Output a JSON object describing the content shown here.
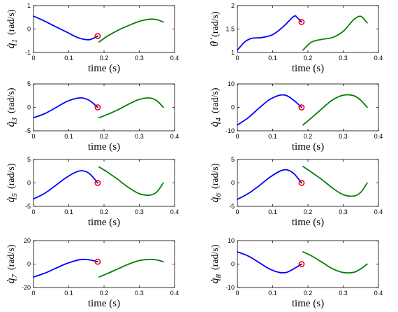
{
  "chart_data": [
    {
      "type": "line",
      "ylabel": {
        "symbol": "q̇",
        "subscript": "1",
        "unit": "(rad/s)"
      },
      "xlabel": "time  (s)",
      "xlim": [
        0,
        0.4
      ],
      "ylim": [
        -1,
        1
      ],
      "xticks": [
        "0",
        "0.1",
        "0.2",
        "0.3",
        "0.4"
      ],
      "yticks": [
        "-1",
        "0",
        "1"
      ],
      "series": [
        {
          "color": "#0000ff",
          "x": [
            0,
            0.03,
            0.06,
            0.09,
            0.12,
            0.14,
            0.16,
            0.182
          ],
          "y": [
            0.55,
            0.35,
            0.12,
            -0.1,
            -0.33,
            -0.43,
            -0.45,
            -0.3
          ]
        },
        {
          "color": "#008000",
          "x": [
            0.186,
            0.21,
            0.24,
            0.27,
            0.3,
            0.33,
            0.35,
            0.368
          ],
          "y": [
            -0.55,
            -0.3,
            -0.05,
            0.15,
            0.33,
            0.42,
            0.4,
            0.3
          ]
        }
      ],
      "marker": {
        "x": 0.182,
        "y": -0.3,
        "color": "#ff0000"
      }
    },
    {
      "type": "line",
      "ylabel": {
        "symbol": "θ̇",
        "subscript": "",
        "unit": "(rad/s)"
      },
      "xlabel": "time  (s)",
      "xlim": [
        0,
        0.4
      ],
      "ylim": [
        1,
        2
      ],
      "xticks": [
        "0",
        "0.1",
        "0.2",
        "0.3",
        "0.4"
      ],
      "yticks": [
        "1",
        "1.5",
        "2"
      ],
      "series": [
        {
          "color": "#0000ff",
          "x": [
            0,
            0.02,
            0.04,
            0.07,
            0.1,
            0.13,
            0.16,
            0.17,
            0.182
          ],
          "y": [
            1.05,
            1.22,
            1.3,
            1.32,
            1.38,
            1.55,
            1.77,
            1.74,
            1.65
          ]
        },
        {
          "color": "#008000",
          "x": [
            0.186,
            0.21,
            0.24,
            0.27,
            0.3,
            0.33,
            0.35,
            0.368
          ],
          "y": [
            1.05,
            1.22,
            1.28,
            1.32,
            1.45,
            1.7,
            1.77,
            1.63
          ]
        }
      ],
      "marker": {
        "x": 0.182,
        "y": 1.65,
        "color": "#ff0000"
      }
    },
    {
      "type": "line",
      "ylabel": {
        "symbol": "q̇",
        "subscript": "3",
        "unit": "(rad/s)"
      },
      "xlabel": "time  (s)",
      "xlim": [
        0,
        0.4
      ],
      "ylim": [
        -5,
        5
      ],
      "xticks": [
        "0",
        "0.1",
        "0.2",
        "0.3",
        "0.4"
      ],
      "yticks": [
        "-5",
        "0",
        "5"
      ],
      "series": [
        {
          "color": "#0000ff",
          "x": [
            0,
            0.03,
            0.06,
            0.09,
            0.12,
            0.14,
            0.16,
            0.182
          ],
          "y": [
            -2.2,
            -1.4,
            -0.2,
            1.1,
            1.9,
            2.0,
            1.4,
            0.0
          ]
        },
        {
          "color": "#008000",
          "x": [
            0.186,
            0.21,
            0.24,
            0.27,
            0.3,
            0.33,
            0.35,
            0.368
          ],
          "y": [
            -2.2,
            -1.5,
            -0.5,
            0.7,
            1.7,
            2.0,
            1.4,
            0.0
          ]
        }
      ],
      "marker": {
        "x": 0.182,
        "y": 0.0,
        "color": "#ff0000"
      }
    },
    {
      "type": "line",
      "ylabel": {
        "symbol": "q̇",
        "subscript": "4",
        "unit": "(rad/s)"
      },
      "xlabel": "time  (s)",
      "xlim": [
        0,
        0.4
      ],
      "ylim": [
        -10,
        10
      ],
      "xticks": [
        "0",
        "0.1",
        "0.2",
        "0.3",
        "0.4"
      ],
      "yticks": [
        "-10",
        "0",
        "10"
      ],
      "series": [
        {
          "color": "#0000ff",
          "x": [
            0,
            0.03,
            0.06,
            0.09,
            0.12,
            0.14,
            0.16,
            0.182
          ],
          "y": [
            -7.5,
            -4.5,
            -0.5,
            3.2,
            5.2,
            5.0,
            3.0,
            0.0
          ]
        },
        {
          "color": "#008000",
          "x": [
            0.186,
            0.21,
            0.24,
            0.27,
            0.3,
            0.33,
            0.35,
            0.368
          ],
          "y": [
            -7.5,
            -4.5,
            -0.5,
            3.2,
            5.2,
            5.0,
            3.0,
            0.0
          ]
        }
      ],
      "marker": {
        "x": 0.182,
        "y": 0.0,
        "color": "#ff0000"
      }
    },
    {
      "type": "line",
      "ylabel": {
        "symbol": "q̇",
        "subscript": "5",
        "unit": "(rad/s)"
      },
      "xlabel": "time  (s)",
      "xlim": [
        0,
        0.4
      ],
      "ylim": [
        -5,
        5
      ],
      "xticks": [
        "0",
        "0.1",
        "0.2",
        "0.3",
        "0.4"
      ],
      "yticks": [
        "-5",
        "0",
        "5"
      ],
      "series": [
        {
          "color": "#0000ff",
          "x": [
            0,
            0.03,
            0.06,
            0.09,
            0.12,
            0.14,
            0.16,
            0.182
          ],
          "y": [
            -3.4,
            -2.3,
            -0.7,
            1.0,
            2.3,
            2.6,
            1.9,
            0.0
          ]
        },
        {
          "color": "#008000",
          "x": [
            0.186,
            0.21,
            0.24,
            0.27,
            0.3,
            0.33,
            0.35,
            0.368
          ],
          "y": [
            3.4,
            2.3,
            0.7,
            -1.0,
            -2.3,
            -2.6,
            -1.9,
            0.0
          ]
        }
      ],
      "marker": {
        "x": 0.182,
        "y": 0.0,
        "color": "#ff0000"
      }
    },
    {
      "type": "line",
      "ylabel": {
        "symbol": "q̇",
        "subscript": "6",
        "unit": "(rad/s)"
      },
      "xlabel": "time  (s)",
      "xlim": [
        0,
        0.4
      ],
      "ylim": [
        -5,
        5
      ],
      "xticks": [
        "0",
        "0.1",
        "0.2",
        "0.3",
        "0.4"
      ],
      "yticks": [
        "-5",
        "0",
        "5"
      ],
      "series": [
        {
          "color": "#0000ff",
          "x": [
            0,
            0.03,
            0.06,
            0.09,
            0.12,
            0.14,
            0.16,
            0.182
          ],
          "y": [
            -3.5,
            -2.3,
            -0.7,
            1.1,
            2.5,
            2.8,
            2.0,
            0.0
          ]
        },
        {
          "color": "#008000",
          "x": [
            0.186,
            0.21,
            0.24,
            0.27,
            0.3,
            0.33,
            0.35,
            0.368
          ],
          "y": [
            3.5,
            2.3,
            0.7,
            -1.1,
            -2.5,
            -2.8,
            -2.0,
            0.0
          ]
        }
      ],
      "marker": {
        "x": 0.182,
        "y": 0.0,
        "color": "#ff0000"
      }
    },
    {
      "type": "line",
      "ylabel": {
        "symbol": "q̇",
        "subscript": "7",
        "unit": "(rad/s)"
      },
      "xlabel": "time  (s)",
      "xlim": [
        0,
        0.4
      ],
      "ylim": [
        -20,
        20
      ],
      "xticks": [
        "0",
        "0.1",
        "0.2",
        "0.3",
        "0.4"
      ],
      "yticks": [
        "-20",
        "0",
        "20"
      ],
      "series": [
        {
          "color": "#0000ff",
          "x": [
            0,
            0.03,
            0.06,
            0.09,
            0.12,
            0.14,
            0.16,
            0.182
          ],
          "y": [
            -11,
            -8,
            -4,
            0,
            3,
            4,
            3.5,
            2
          ]
        },
        {
          "color": "#008000",
          "x": [
            0.186,
            0.21,
            0.24,
            0.27,
            0.3,
            0.33,
            0.35,
            0.368
          ],
          "y": [
            -11,
            -8,
            -4,
            0,
            3,
            4,
            3.5,
            2
          ]
        }
      ],
      "marker": {
        "x": 0.182,
        "y": 2,
        "color": "#ff0000"
      }
    },
    {
      "type": "line",
      "ylabel": {
        "symbol": "q̇",
        "subscript": "8",
        "unit": "(rad/s)"
      },
      "xlabel": "time  (s)",
      "xlim": [
        0,
        0.4
      ],
      "ylim": [
        -10,
        10
      ],
      "xticks": [
        "0",
        "0.1",
        "0.2",
        "0.3",
        "0.4"
      ],
      "yticks": [
        "-10",
        "0",
        "10"
      ],
      "series": [
        {
          "color": "#0000ff",
          "x": [
            0,
            0.03,
            0.06,
            0.09,
            0.12,
            0.14,
            0.16,
            0.182
          ],
          "y": [
            5.2,
            3.5,
            0.8,
            -2.0,
            -3.6,
            -3.5,
            -2.0,
            0.0
          ]
        },
        {
          "color": "#008000",
          "x": [
            0.186,
            0.21,
            0.24,
            0.27,
            0.3,
            0.33,
            0.35,
            0.368
          ],
          "y": [
            5.2,
            3.5,
            0.8,
            -2.0,
            -3.6,
            -3.5,
            -2.0,
            0.0
          ]
        }
      ],
      "marker": {
        "x": 0.182,
        "y": 0.0,
        "color": "#ff0000"
      }
    }
  ]
}
